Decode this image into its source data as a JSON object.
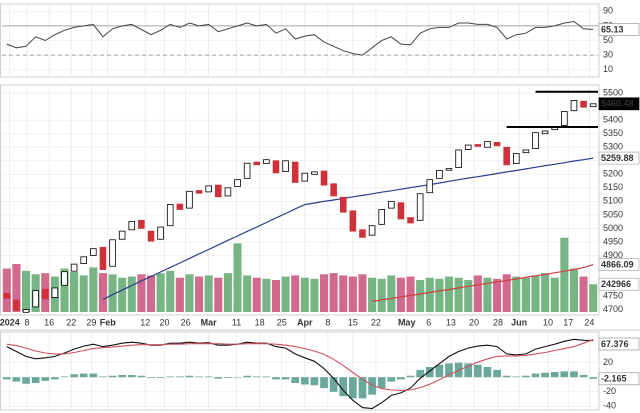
{
  "chart_data": [
    {
      "type": "oscillator",
      "ylim": [
        0,
        100
      ],
      "yticks": [
        90,
        70,
        50,
        30,
        10
      ],
      "reference_lines": [
        70,
        30
      ],
      "series": [
        {
          "color": "#444444",
          "values": [
            45,
            40,
            42,
            55,
            50,
            58,
            64,
            68,
            70,
            72,
            55,
            66,
            70,
            72,
            65,
            58,
            64,
            72,
            68,
            74,
            70,
            72,
            62,
            66,
            70,
            74,
            70,
            72,
            60,
            66,
            52,
            56,
            58,
            48,
            42,
            36,
            32,
            30,
            40,
            50,
            55,
            45,
            44,
            60,
            66,
            68,
            68,
            74,
            74,
            72,
            72,
            68,
            52,
            58,
            60,
            68,
            68,
            70,
            74,
            76,
            66,
            65.13
          ]
        }
      ]
    },
    {
      "type": "candlestick",
      "ylim": [
        4680,
        5530
      ],
      "yticks": [
        4700,
        4750,
        4800,
        4900,
        4950,
        5000,
        5050,
        5100,
        5150,
        5200,
        5250,
        5300,
        5350,
        5400,
        5500
      ],
      "xticks": [
        {
          "value": 0.3,
          "label": "2024"
        },
        {
          "value": 2.1,
          "label": "8"
        },
        {
          "value": 4.4,
          "label": "16"
        },
        {
          "value": 6.7,
          "label": "22"
        },
        {
          "value": 8.8,
          "label": "29"
        },
        {
          "value": 10.5,
          "label": "Feb"
        },
        {
          "value": 14.4,
          "label": "12"
        },
        {
          "value": 16.4,
          "label": "20"
        },
        {
          "value": 18.6,
          "label": "26"
        },
        {
          "value": 21,
          "label": "Mar"
        },
        {
          "value": 23.9,
          "label": "11"
        },
        {
          "value": 26.3,
          "label": "18"
        },
        {
          "value": 28.6,
          "label": "25"
        },
        {
          "value": 31,
          "label": "Apr"
        },
        {
          "value": 33.4,
          "label": "8"
        },
        {
          "value": 36,
          "label": "15"
        },
        {
          "value": 38.4,
          "label": "22"
        },
        {
          "value": 41.6,
          "label": "May"
        },
        {
          "value": 43.9,
          "label": "6"
        },
        {
          "value": 46.2,
          "label": "13"
        },
        {
          "value": 48.6,
          "label": "20"
        },
        {
          "value": 51.1,
          "label": "28"
        },
        {
          "value": 53.3,
          "label": "Jun"
        },
        {
          "value": 56.3,
          "label": "10"
        },
        {
          "value": 58.4,
          "label": "17"
        },
        {
          "value": 60.6,
          "label": "24"
        }
      ],
      "open": [
        4760,
        4735,
        4690,
        4710,
        4775,
        4745,
        4790,
        4842,
        4870,
        4900,
        4930,
        4860,
        4960,
        4995,
        5030,
        4990,
        4960,
        5010,
        5090,
        5075,
        5140,
        5135,
        5160,
        5120,
        5155,
        5185,
        5245,
        5240,
        5250,
        5210,
        5245,
        5175,
        5200,
        5212,
        5165,
        5115,
        5065,
        4995,
        4975,
        5015,
        5075,
        5095,
        5040,
        5030,
        5132,
        5185,
        5215,
        5225,
        5292,
        5310,
        5300,
        5318,
        5300,
        5240,
        5280,
        5295,
        5350,
        5365,
        5380,
        5435,
        5470,
        5450
      ],
      "close": [
        4742,
        4697,
        4700,
        4770,
        4740,
        4780,
        4840,
        4868,
        4895,
        4925,
        4848,
        4958,
        4990,
        5026,
        5000,
        4953,
        5005,
        5088,
        5070,
        5137,
        5130,
        5157,
        5117,
        5150,
        5180,
        5241,
        5235,
        5254,
        5205,
        5250,
        5170,
        5204,
        5209,
        5160,
        5120,
        5060,
        4990,
        4967,
        5010,
        5070,
        5100,
        5035,
        5020,
        5128,
        5180,
        5214,
        5221,
        5290,
        5308,
        5303,
        5321,
        5305,
        5235,
        5277,
        5290,
        5354,
        5360,
        5375,
        5432,
        5473,
        5448,
        5460.48
      ],
      "up_color": "#000000",
      "down_color": "#d0303a",
      "volume": [
        380000,
        420000,
        360000,
        330000,
        340000,
        310000,
        380000,
        350000,
        320000,
        390000,
        340000,
        330000,
        300000,
        310000,
        330000,
        320000,
        340000,
        360000,
        300000,
        330000,
        310000,
        320000,
        300000,
        340000,
        600000,
        320000,
        300000,
        290000,
        280000,
        310000,
        320000,
        300000,
        290000,
        330000,
        340000,
        320000,
        310000,
        330000,
        300000,
        290000,
        320000,
        300000,
        310000,
        280000,
        300000,
        290000,
        310000,
        300000,
        280000,
        320000,
        300000,
        290000,
        330000,
        310000,
        300000,
        320000,
        340000,
        300000,
        650000,
        380000,
        310000,
        242966
      ],
      "vlim": [
        0,
        700000
      ],
      "volume_up_color": "#5fa86e",
      "volume_down_color": "#c9507a",
      "overlays": [
        {
          "color": "#2c3e8c",
          "values": [
            null,
            null,
            null,
            null,
            null,
            null,
            null,
            null,
            null,
            null,
            4737,
            4755,
            4772,
            4789,
            4806,
            4822,
            4839,
            4856,
            4872,
            4889,
            4906,
            4922,
            4939,
            4956,
            4972,
            4989,
            5005,
            5022,
            5039,
            5055,
            5072,
            5088,
            5094,
            5100,
            5105,
            5111,
            5117,
            5122,
            5128,
            5134,
            5139,
            5145,
            5151,
            5156,
            5162,
            5168,
            5174,
            5180,
            5186,
            5191,
            5197,
            5203,
            5209,
            5214,
            5220,
            5226,
            5232,
            5237,
            5243,
            5249,
            5254,
            5259.88
          ]
        },
        {
          "color": "#d04040",
          "values": [
            null,
            null,
            null,
            null,
            null,
            null,
            null,
            null,
            null,
            null,
            null,
            null,
            null,
            null,
            null,
            null,
            null,
            null,
            null,
            null,
            null,
            null,
            null,
            null,
            null,
            null,
            null,
            null,
            null,
            null,
            null,
            null,
            null,
            null,
            null,
            null,
            null,
            null,
            4730,
            4736,
            4741,
            4747,
            4752,
            4758,
            4763,
            4769,
            4774,
            4780,
            4786,
            4791,
            4797,
            4802,
            4808,
            4813,
            4819,
            4825,
            4830,
            4836,
            4842,
            4848,
            4855,
            4866.09
          ]
        }
      ],
      "levels": [
        {
          "value": 5505,
          "start": 55
        },
        {
          "value": 5375,
          "start": 52
        }
      ]
    },
    {
      "type": "macd",
      "ylim": [
        -75,
        85
      ],
      "y2lim": [
        -45,
        62
      ],
      "y2ticks": [
        20,
        0,
        -20,
        -40
      ],
      "series": [
        {
          "color": "#111111",
          "values": [
            55,
            45,
            35,
            30,
            32,
            35,
            42,
            50,
            56,
            60,
            55,
            58,
            62,
            64,
            62,
            58,
            58,
            62,
            62,
            64,
            62,
            63,
            58,
            58,
            60,
            64,
            62,
            62,
            55,
            52,
            40,
            32,
            25,
            10,
            -10,
            -35,
            -55,
            -70,
            -72,
            -60,
            -45,
            -40,
            -30,
            -10,
            5,
            20,
            35,
            45,
            52,
            56,
            58,
            55,
            40,
            38,
            40,
            50,
            55,
            60,
            66,
            70,
            68,
            67.376
          ]
        },
        {
          "color": "#d05060",
          "values": [
            60,
            57,
            52,
            46,
            42,
            40,
            40,
            43,
            47,
            51,
            53,
            54,
            56,
            58,
            59,
            59,
            59,
            60,
            60,
            61,
            61,
            61,
            61,
            60,
            60,
            61,
            61,
            61,
            60,
            58,
            55,
            51,
            46,
            39,
            29,
            16,
            2,
            -12,
            -24,
            -31,
            -34,
            -35,
            -34,
            -29,
            -22,
            -13,
            -3,
            6,
            15,
            23,
            30,
            35,
            36,
            36,
            37,
            40,
            43,
            47,
            51,
            55,
            62,
            69.54
          ]
        },
        {
          "color": "#6aa89a",
          "axis": "y2",
          "values": [
            -3,
            -6,
            -9,
            -8,
            -5,
            -3,
            1,
            4,
            5,
            5,
            1,
            2,
            3,
            3,
            2,
            -1,
            -1,
            1,
            1,
            2,
            1,
            1,
            -2,
            -1,
            0,
            2,
            1,
            1,
            -3,
            -3,
            -8,
            -10,
            -11,
            -15,
            -20,
            -26,
            -29,
            -29,
            -24,
            -15,
            -6,
            -3,
            2,
            10,
            14,
            17,
            19,
            20,
            19,
            17,
            14,
            10,
            2,
            1,
            2,
            5,
            6,
            7,
            8,
            8,
            3,
            -2.165
          ]
        }
      ]
    }
  ]
}
